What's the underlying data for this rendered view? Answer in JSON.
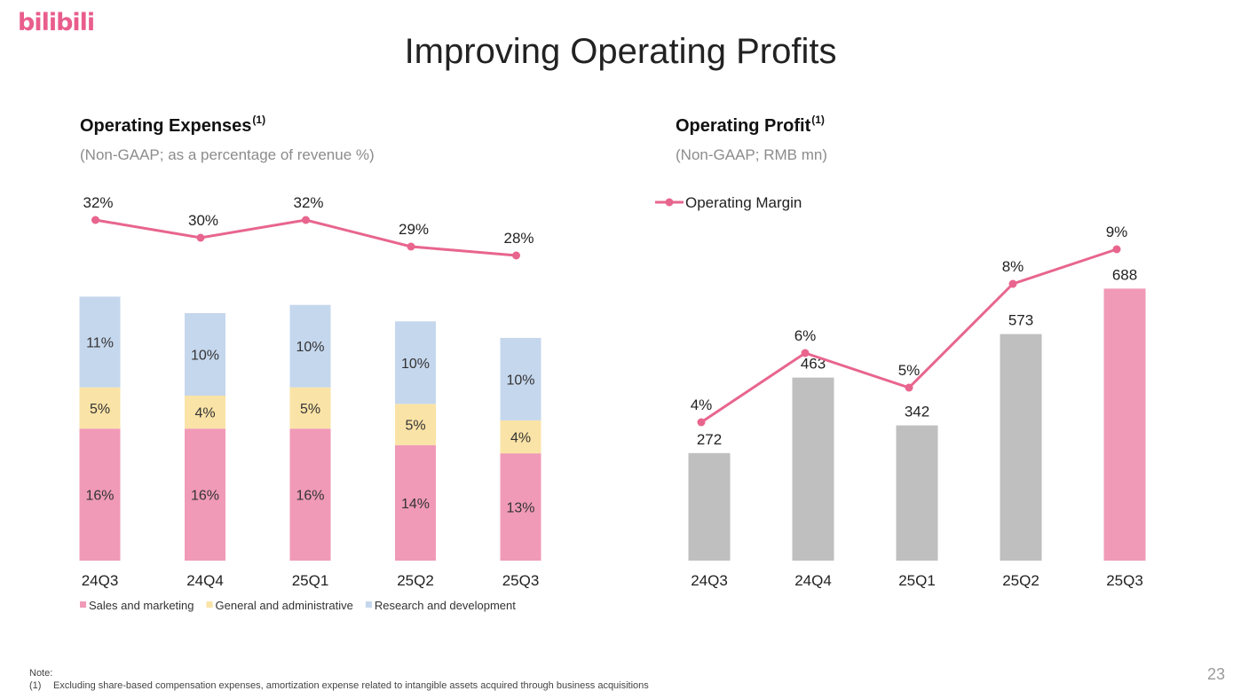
{
  "brand": {
    "logo_text": "bilibili",
    "color": "#e95d8c"
  },
  "title": "Improving Operating Profits",
  "page_number": "23",
  "note": {
    "heading": "Note:",
    "items": [
      {
        "num": "(1)",
        "text": "Excluding share-based compensation expenses, amortization expense related to intangible assets acquired through business acquisitions"
      }
    ]
  },
  "chart_data": [
    {
      "type": "bar",
      "stacked": true,
      "title": "Operating Expenses",
      "title_superscript": "(1)",
      "subtitle": "(Non-GAAP; as a percentage of revenue %)",
      "categories": [
        "24Q3",
        "24Q4",
        "25Q1",
        "25Q2",
        "25Q3"
      ],
      "series": [
        {
          "name": "Sales and marketing",
          "color": "#f09ab7",
          "values": [
            16,
            16,
            16,
            14,
            13
          ]
        },
        {
          "name": "General and administrative",
          "color": "#fae3a6",
          "values": [
            5,
            4,
            5,
            5,
            4
          ]
        },
        {
          "name": "Research and development",
          "color": "#c5d7ed",
          "values": [
            11,
            10,
            10,
            10,
            10
          ]
        }
      ],
      "line": {
        "values": [
          32,
          30,
          32,
          29,
          28
        ],
        "unit": "%",
        "color": "#e8658e"
      },
      "unit": "%",
      "legend_position": "bottom-left",
      "grid": false
    },
    {
      "type": "bar",
      "title": "Operating Profit",
      "title_superscript": "(1)",
      "subtitle": "(Non-GAAP; RMB mn)",
      "categories": [
        "24Q3",
        "24Q4",
        "25Q1",
        "25Q2",
        "25Q3"
      ],
      "series": [
        {
          "values": [
            272,
            463,
            342,
            573,
            688
          ],
          "colors": [
            "#bfbfbf",
            "#bfbfbf",
            "#bfbfbf",
            "#bfbfbf",
            "#f09ab7"
          ]
        }
      ],
      "line": {
        "name": "Operating Margin",
        "values": [
          4,
          6,
          5,
          8,
          9
        ],
        "unit": "%",
        "color": "#e8658e"
      },
      "legend_position": "top-left",
      "grid": false
    }
  ]
}
